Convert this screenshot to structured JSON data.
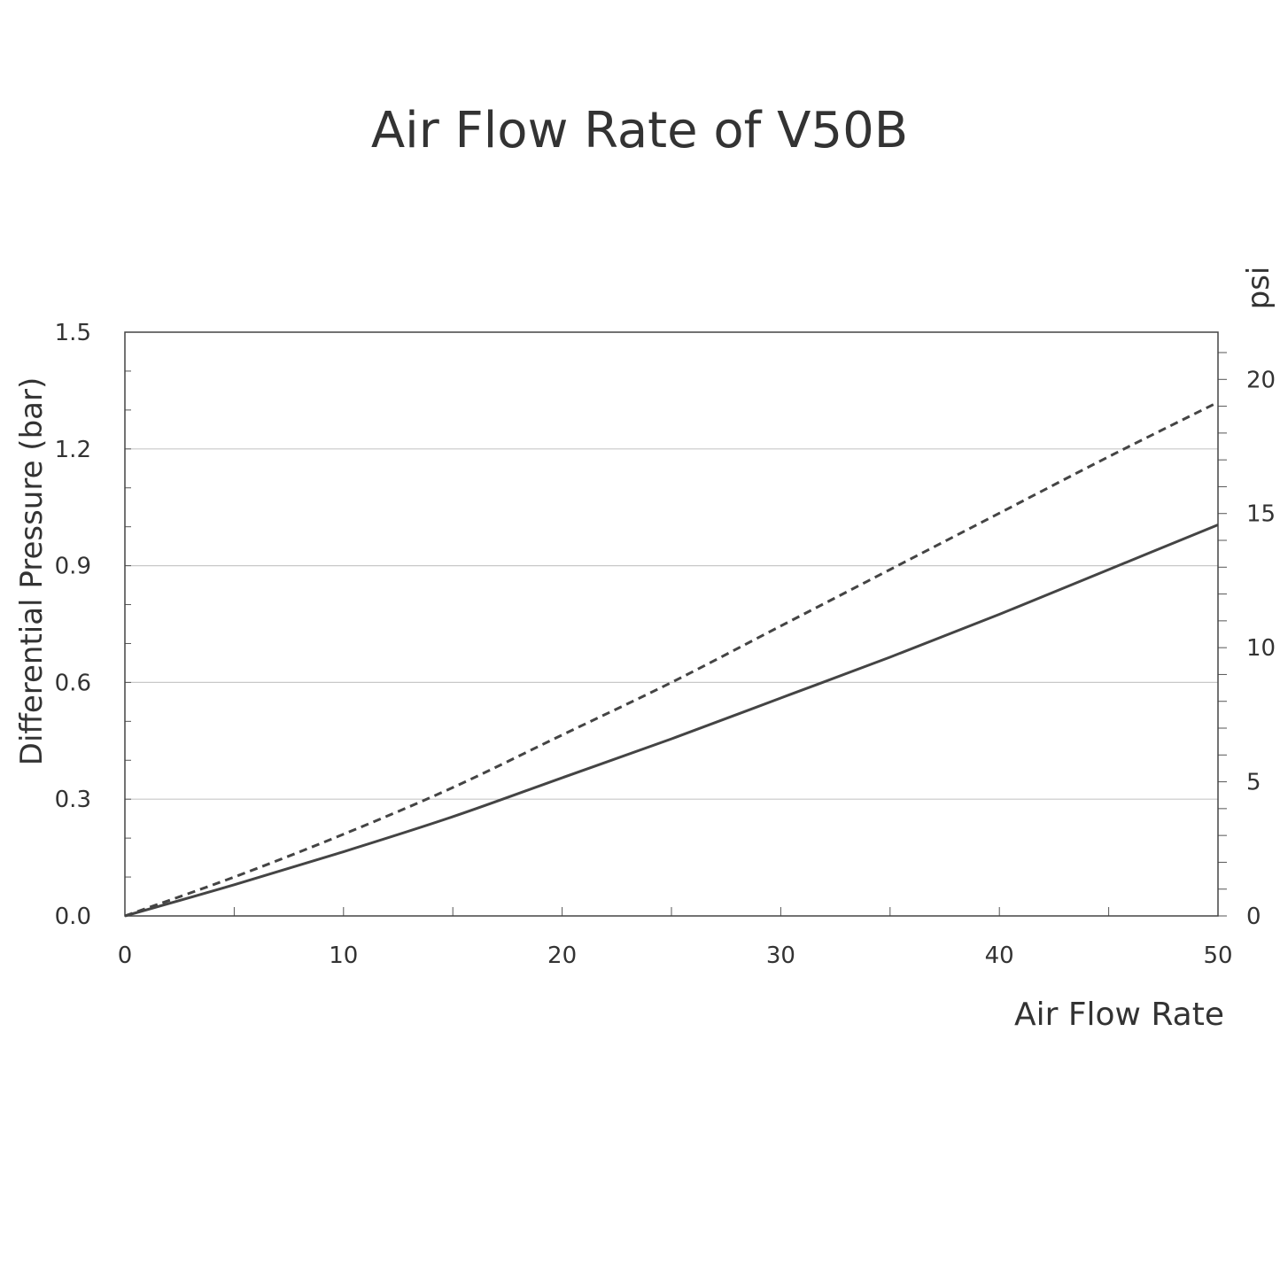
{
  "chart_data": {
    "type": "line",
    "title": "Air Flow Rate of V50B",
    "xlabel": "Air Flow Rate",
    "ylabel": "Differential Pressure (bar)",
    "y2label": "psi",
    "xlim": [
      0,
      50
    ],
    "ylim": [
      0,
      1.5
    ],
    "y2lim": [
      0,
      21.76
    ],
    "xticks": [
      "0",
      "10",
      "20",
      "30",
      "40",
      "50"
    ],
    "yticks": [
      "0.0",
      "0.3",
      "0.6",
      "0.9",
      "1.2",
      "1.5"
    ],
    "y2ticks": [
      "0",
      "5",
      "10",
      "15",
      "20"
    ],
    "grid": "horizontal",
    "x": [
      0,
      5,
      10,
      15,
      20,
      25,
      30,
      35,
      40,
      45,
      50
    ],
    "series": [
      {
        "style": "solid",
        "color": "#444444",
        "values": [
          0,
          0.08,
          0.165,
          0.255,
          0.355,
          0.455,
          0.56,
          0.665,
          0.775,
          0.89,
          1.005
        ]
      },
      {
        "style": "dashed",
        "color": "#444444",
        "values": [
          0,
          0.1,
          0.21,
          0.33,
          0.465,
          0.6,
          0.745,
          0.89,
          1.035,
          1.18,
          1.32
        ]
      }
    ]
  }
}
